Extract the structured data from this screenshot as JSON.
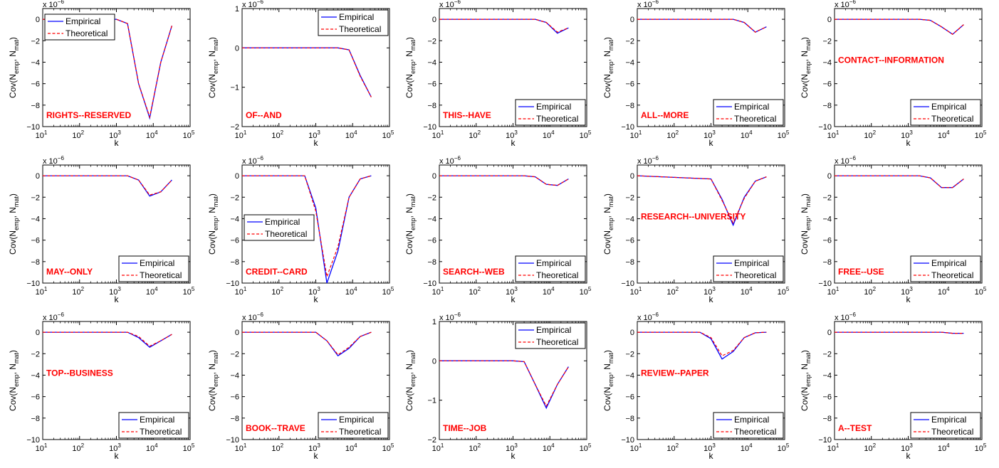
{
  "legend_labels": {
    "empirical": "Empirical",
    "theoretical": "Theoretical"
  },
  "colors": {
    "empirical": "#0000ff",
    "theoretical": "#ff0000",
    "panel_label": "#ff0000",
    "axes": "#000000"
  },
  "chart_data": [
    {
      "type": "line",
      "title": "RIGHTS--RESERVED",
      "xlabel": "k",
      "ylabel": "Cov(N_emp, N_mat)",
      "yexp": "x 10^-6",
      "xscale": "log",
      "xlim": [
        10,
        100000
      ],
      "ylim": [
        -10,
        1
      ],
      "yticks": [
        0,
        -2,
        -4,
        -6,
        -8,
        -10
      ],
      "x": [
        10,
        1000,
        2000,
        4000,
        8000,
        16000,
        32000
      ],
      "series": [
        {
          "name": "Empirical",
          "values": [
            0,
            0,
            -0.4,
            -6,
            -9.2,
            -4,
            -0.6
          ]
        },
        {
          "name": "Theoretical",
          "values": [
            0,
            0,
            -0.4,
            -6,
            -9.1,
            -4,
            -0.6
          ]
        }
      ],
      "legend_position": "top-left",
      "label_position": "bottom-left"
    },
    {
      "type": "line",
      "title": "OF--AND",
      "xlabel": "k",
      "ylabel": "Cov(N_emp, N_mat)",
      "yexp": "x 10^-6",
      "xscale": "log",
      "xlim": [
        10,
        100000
      ],
      "ylim": [
        -2,
        1
      ],
      "yticks": [
        1,
        0,
        -1,
        -2
      ],
      "x": [
        10,
        1000,
        4000,
        8000,
        16000,
        32000
      ],
      "series": [
        {
          "name": "Empirical",
          "values": [
            0,
            0,
            0,
            -0.05,
            -0.7,
            -1.25
          ]
        },
        {
          "name": "Theoretical",
          "values": [
            0,
            0,
            0,
            -0.05,
            -0.72,
            -1.25
          ]
        }
      ],
      "legend_position": "top-right",
      "label_position": "bottom-left"
    },
    {
      "type": "line",
      "title": "THIS--HAVE",
      "xlabel": "k",
      "ylabel": "Cov(N_emp, N_mat)",
      "yexp": "x 10^-6",
      "xscale": "log",
      "xlim": [
        10,
        100000
      ],
      "ylim": [
        -10,
        1
      ],
      "yticks": [
        0,
        -2,
        -4,
        -6,
        -8,
        -10
      ],
      "x": [
        10,
        1000,
        4000,
        8000,
        16000,
        32000
      ],
      "series": [
        {
          "name": "Empirical",
          "values": [
            0,
            0,
            0,
            -0.3,
            -1.3,
            -0.8
          ]
        },
        {
          "name": "Theoretical",
          "values": [
            0,
            0,
            0,
            -0.3,
            -1.2,
            -0.8
          ]
        }
      ],
      "legend_position": "bottom-right",
      "label_position": "bottom-left"
    },
    {
      "type": "line",
      "title": "ALL--MORE",
      "xlabel": "k",
      "ylabel": "Cov(N_emp, N_mat)",
      "yexp": "x 10^-6",
      "xscale": "log",
      "xlim": [
        10,
        100000
      ],
      "ylim": [
        -10,
        1
      ],
      "yticks": [
        0,
        -2,
        -4,
        -6,
        -8,
        -10
      ],
      "x": [
        10,
        1000,
        4000,
        8000,
        16000,
        32000
      ],
      "series": [
        {
          "name": "Empirical",
          "values": [
            0,
            0,
            0,
            -0.3,
            -1.2,
            -0.7
          ]
        },
        {
          "name": "Theoretical",
          "values": [
            0,
            0,
            0,
            -0.3,
            -1.2,
            -0.7
          ]
        }
      ],
      "legend_position": "bottom-right",
      "label_position": "bottom-left"
    },
    {
      "type": "line",
      "title": "CONTACT--INFORMATION",
      "xlabel": "k",
      "ylabel": "Cov(N_emp, N_mat)",
      "yexp": "x 10^-6",
      "xscale": "log",
      "xlim": [
        10,
        100000
      ],
      "ylim": [
        -10,
        1
      ],
      "yticks": [
        0,
        -2,
        -4,
        -6,
        -8,
        -10
      ],
      "x": [
        10,
        2000,
        4000,
        8000,
        16000,
        32000
      ],
      "series": [
        {
          "name": "Empirical",
          "values": [
            0,
            0,
            -0.1,
            -0.7,
            -1.4,
            -0.5
          ]
        },
        {
          "name": "Theoretical",
          "values": [
            0,
            0,
            -0.1,
            -0.7,
            -1.4,
            -0.5
          ]
        }
      ],
      "legend_position": "bottom-right",
      "label_position": "middle-left"
    },
    {
      "type": "line",
      "title": "MAY--ONLY",
      "xlabel": "k",
      "ylabel": "Cov(N_emp, N_mat)",
      "yexp": "x 10^-6",
      "xscale": "log",
      "xlim": [
        10,
        100000
      ],
      "ylim": [
        -10,
        1
      ],
      "yticks": [
        0,
        -2,
        -4,
        -6,
        -8,
        -10
      ],
      "x": [
        10,
        2000,
        4000,
        8000,
        16000,
        32000
      ],
      "series": [
        {
          "name": "Empirical",
          "values": [
            0,
            0,
            -0.4,
            -1.9,
            -1.5,
            -0.4
          ]
        },
        {
          "name": "Theoretical",
          "values": [
            0,
            0,
            -0.4,
            -1.8,
            -1.5,
            -0.4
          ]
        }
      ],
      "legend_position": "bottom-right",
      "label_position": "bottom-left"
    },
    {
      "type": "line",
      "title": "CREDIT--CARD",
      "xlabel": "k",
      "ylabel": "Cov(N_emp, N_mat)",
      "yexp": "x 10^-6",
      "xscale": "log",
      "xlim": [
        10,
        100000
      ],
      "ylim": [
        -10,
        1
      ],
      "yticks": [
        0,
        -2,
        -4,
        -6,
        -8,
        -10
      ],
      "x": [
        10,
        500,
        1000,
        2000,
        4000,
        8000,
        16000,
        32000
      ],
      "series": [
        {
          "name": "Empirical",
          "values": [
            0,
            0,
            -3,
            -10,
            -7,
            -2,
            -0.3,
            0
          ]
        },
        {
          "name": "Theoretical",
          "values": [
            0,
            0,
            -3.3,
            -9.4,
            -6.6,
            -2,
            -0.3,
            0
          ]
        }
      ],
      "legend_position": "middle-left",
      "label_position": "bottom-left"
    },
    {
      "type": "line",
      "title": "SEARCH--WEB",
      "xlabel": "k",
      "ylabel": "Cov(N_emp, N_mat)",
      "yexp": "x 10^-6",
      "xscale": "log",
      "xlim": [
        10,
        100000
      ],
      "ylim": [
        -10,
        1
      ],
      "yticks": [
        0,
        -2,
        -4,
        -6,
        -8,
        -10
      ],
      "x": [
        10,
        2000,
        4000,
        8000,
        16000,
        32000
      ],
      "series": [
        {
          "name": "Empirical",
          "values": [
            0,
            0,
            -0.1,
            -0.8,
            -0.9,
            -0.3
          ]
        },
        {
          "name": "Theoretical",
          "values": [
            0,
            0,
            -0.1,
            -0.8,
            -0.9,
            -0.3
          ]
        }
      ],
      "legend_position": "bottom-right",
      "label_position": "bottom-left"
    },
    {
      "type": "line",
      "title": "RESEARCH--UNIVERSITY",
      "xlabel": "k",
      "ylabel": "Cov(N_emp, N_mat)",
      "yexp": "x 10^-6",
      "xscale": "log",
      "xlim": [
        10,
        100000
      ],
      "ylim": [
        -10,
        1
      ],
      "yticks": [
        0,
        -2,
        -4,
        -6,
        -8,
        -10
      ],
      "x": [
        10,
        1000,
        2000,
        4000,
        8000,
        16000,
        32000
      ],
      "series": [
        {
          "name": "Empirical",
          "values": [
            0,
            -0.3,
            -2.2,
            -4.6,
            -2,
            -0.5,
            -0.1
          ]
        },
        {
          "name": "Theoretical",
          "values": [
            0,
            -0.3,
            -2.3,
            -4.4,
            -2.1,
            -0.5,
            -0.1
          ]
        }
      ],
      "legend_position": "bottom-right",
      "label_position": "middle-left"
    },
    {
      "type": "line",
      "title": "FREE--USE",
      "xlabel": "k",
      "ylabel": "Cov(N_emp, N_mat)",
      "yexp": "x 10^-6",
      "xscale": "log",
      "xlim": [
        10,
        100000
      ],
      "ylim": [
        -10,
        1
      ],
      "yticks": [
        0,
        -2,
        -4,
        -6,
        -8,
        -10
      ],
      "x": [
        10,
        2000,
        4000,
        8000,
        16000,
        32000
      ],
      "series": [
        {
          "name": "Empirical",
          "values": [
            0,
            0,
            -0.2,
            -1.1,
            -1.1,
            -0.3
          ]
        },
        {
          "name": "Theoretical",
          "values": [
            0,
            0,
            -0.2,
            -1.1,
            -1.1,
            -0.3
          ]
        }
      ],
      "legend_position": "bottom-right",
      "label_position": "bottom-left"
    },
    {
      "type": "line",
      "title": "TOP--BUSINESS",
      "xlabel": "k",
      "ylabel": "Cov(N_emp, N_mat)",
      "yexp": "x 10^-6",
      "xscale": "log",
      "xlim": [
        10,
        100000
      ],
      "ylim": [
        -10,
        1
      ],
      "yticks": [
        0,
        -2,
        -4,
        -6,
        -8,
        -10
      ],
      "x": [
        10,
        2000,
        4000,
        8000,
        16000,
        32000
      ],
      "series": [
        {
          "name": "Empirical",
          "values": [
            0,
            0,
            -0.5,
            -1.4,
            -0.8,
            -0.2
          ]
        },
        {
          "name": "Theoretical",
          "values": [
            0,
            0,
            -0.4,
            -1.3,
            -0.8,
            -0.2
          ]
        }
      ],
      "legend_position": "bottom-right",
      "label_position": "middle-left"
    },
    {
      "type": "line",
      "title": "BOOK--TRAVE",
      "xlabel": "k",
      "ylabel": "Cov(N_emp, N_mat)",
      "yexp": "x 10^-6",
      "xscale": "log",
      "xlim": [
        10,
        100000
      ],
      "ylim": [
        -10,
        1
      ],
      "yticks": [
        0,
        -2,
        -4,
        -6,
        -8,
        -10
      ],
      "x": [
        10,
        1000,
        2000,
        4000,
        8000,
        16000,
        32000
      ],
      "series": [
        {
          "name": "Empirical",
          "values": [
            0,
            0,
            -0.8,
            -2.2,
            -1.5,
            -0.4,
            0
          ]
        },
        {
          "name": "Theoretical",
          "values": [
            0,
            0,
            -0.8,
            -2.1,
            -1.4,
            -0.4,
            0
          ]
        }
      ],
      "legend_position": "bottom-right",
      "label_position": "bottom-left"
    },
    {
      "type": "line",
      "title": "TIME--JOB",
      "xlabel": "k",
      "ylabel": "Cov(N_emp, N_mat)",
      "yexp": "x 10^-6",
      "xscale": "log",
      "xlim": [
        10,
        100000
      ],
      "ylim": [
        -2,
        1
      ],
      "yticks": [
        1,
        0,
        -1,
        -2
      ],
      "x": [
        10,
        1000,
        2000,
        4000,
        8000,
        16000,
        32000
      ],
      "series": [
        {
          "name": "Empirical",
          "values": [
            0,
            0,
            -0.02,
            -0.6,
            -1.2,
            -0.6,
            -0.15
          ]
        },
        {
          "name": "Theoretical",
          "values": [
            0,
            0,
            -0.02,
            -0.6,
            -1.15,
            -0.6,
            -0.15
          ]
        }
      ],
      "legend_position": "top-right",
      "label_position": "bottom-left"
    },
    {
      "type": "line",
      "title": "REVIEW--PAPER",
      "xlabel": "k",
      "ylabel": "Cov(N_emp, N_mat)",
      "yexp": "x 10^-6",
      "xscale": "log",
      "xlim": [
        10,
        100000
      ],
      "ylim": [
        -10,
        1
      ],
      "yticks": [
        0,
        -2,
        -4,
        -6,
        -8,
        -10
      ],
      "x": [
        10,
        500,
        1000,
        2000,
        4000,
        8000,
        16000,
        32000
      ],
      "series": [
        {
          "name": "Empirical",
          "values": [
            0,
            0,
            -0.6,
            -2.5,
            -1.8,
            -0.5,
            -0.05,
            0
          ]
        },
        {
          "name": "Theoretical",
          "values": [
            0,
            0,
            -0.5,
            -2.2,
            -1.7,
            -0.5,
            -0.05,
            0
          ]
        }
      ],
      "legend_position": "bottom-right",
      "label_position": "middle-left"
    },
    {
      "type": "line",
      "title": "A--TEST",
      "xlabel": "k",
      "ylabel": "Cov(N_emp, N_mat)",
      "yexp": "x 10^-6",
      "xscale": "log",
      "xlim": [
        10,
        100000
      ],
      "ylim": [
        -10,
        1
      ],
      "yticks": [
        0,
        -2,
        -4,
        -6,
        -8,
        -10
      ],
      "x": [
        10,
        8000,
        16000,
        32000
      ],
      "series": [
        {
          "name": "Empirical",
          "values": [
            0,
            0,
            -0.1,
            -0.1
          ]
        },
        {
          "name": "Theoretical",
          "values": [
            0,
            0,
            -0.1,
            -0.1
          ]
        }
      ],
      "legend_position": "bottom-right",
      "label_position": "bottom-left"
    }
  ]
}
